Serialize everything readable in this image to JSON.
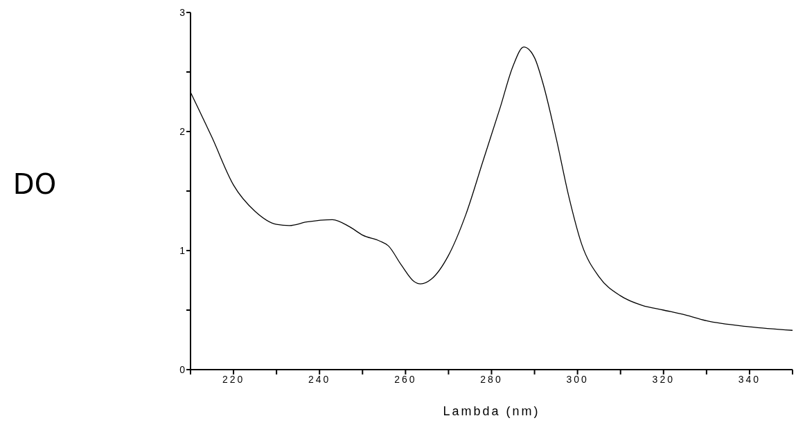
{
  "chart_data": {
    "type": "line",
    "xlabel": "Lambda (nm)",
    "ylabel": "DO",
    "x": [
      210,
      215,
      220,
      225,
      230,
      233,
      237,
      243,
      247,
      250,
      254,
      256,
      259,
      262,
      263.5,
      266,
      270,
      274,
      278,
      282,
      285,
      287.5,
      290,
      292,
      295,
      298,
      301,
      305,
      310,
      315,
      320,
      325,
      330,
      340,
      350
    ],
    "series": [
      {
        "color": "#000000",
        "values": [
          2.33,
          1.95,
          1.55,
          1.33,
          1.22,
          1.21,
          1.24,
          1.26,
          1.2,
          1.13,
          1.08,
          1.04,
          0.88,
          0.74,
          0.72,
          0.76,
          0.96,
          1.3,
          1.75,
          2.2,
          2.55,
          2.71,
          2.62,
          2.4,
          1.95,
          1.45,
          1.05,
          0.78,
          0.62,
          0.54,
          0.5,
          0.46,
          0.41,
          0.36,
          0.33
        ]
      }
    ],
    "xlim": [
      210,
      350
    ],
    "xticks": [
      {
        "value": 210,
        "label": null
      },
      220,
      {
        "value": 230,
        "label": null
      },
      240,
      {
        "value": 250,
        "label": null
      },
      260,
      {
        "value": 270,
        "label": null
      },
      280,
      {
        "value": 290,
        "label": null
      },
      300,
      {
        "value": 310,
        "label": null
      },
      320,
      {
        "value": 330,
        "label": null
      },
      340,
      {
        "value": 350,
        "label": null
      }
    ],
    "ylim": [
      0,
      3
    ],
    "yticks": [
      0,
      {
        "value": 0.5,
        "label": null
      },
      1,
      {
        "value": 1.5,
        "label": null
      },
      2,
      {
        "value": 2.5,
        "label": null
      },
      3
    ],
    "grid": false,
    "legend": false,
    "marker": "none",
    "line_style": "solid"
  }
}
